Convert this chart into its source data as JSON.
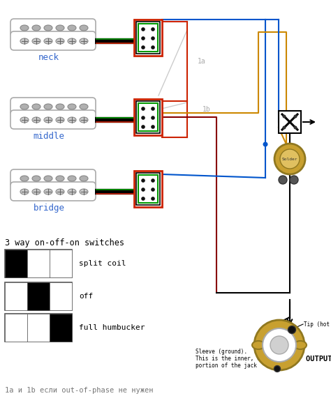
{
  "bg_color": "#ffffff",
  "pickup_labels": [
    "neck",
    "middle",
    "bridge"
  ],
  "pickup_label_color": "#3366cc",
  "switch_label": "3 way on-off-on switches",
  "switch_modes": [
    "split coil",
    "off",
    "full humbucker"
  ],
  "wire_red": "#cc2200",
  "wire_green": "#009900",
  "wire_blue": "#0055cc",
  "wire_orange": "#cc8800",
  "wire_darkred": "#880000",
  "output_jack_label": "OUTPUT JACK",
  "tip_label": "Tip (hot output)",
  "sleeve_line1": "Sleeve (ground).",
  "sleeve_line2": "This is the inner, circular",
  "sleeve_line3": "portion of the jack",
  "bottom_text": "1a и 1b если out-of-phase не нужен",
  "label_1a": "1a",
  "label_1b": "1b",
  "solder_label": "Solder"
}
